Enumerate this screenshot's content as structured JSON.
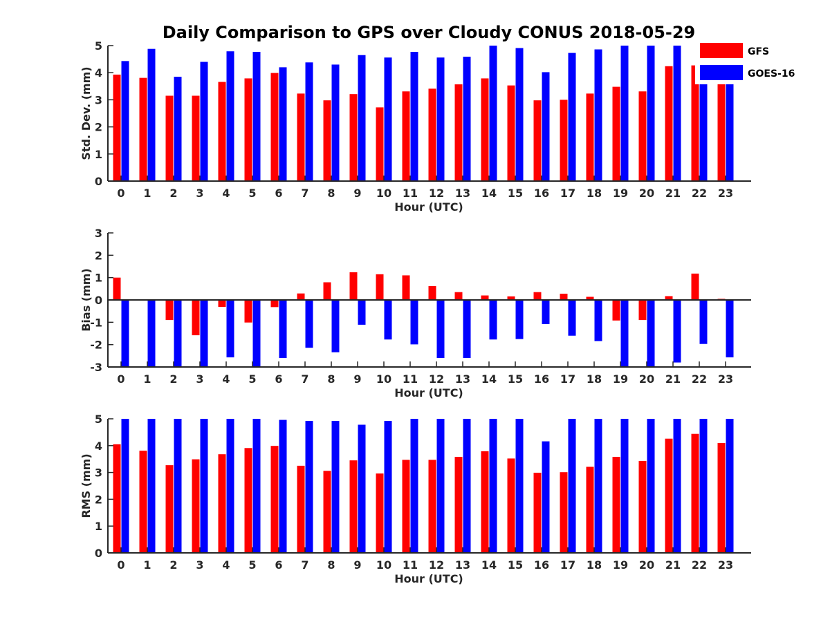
{
  "title": "Daily Comparison to GPS over Cloudy CONUS 2018-05-29",
  "legend": {
    "placement": "top-right",
    "entries": [
      {
        "name": "GFS",
        "color": "#ff0000"
      },
      {
        "name": "GOES-16",
        "color": "#0000ff"
      }
    ]
  },
  "chart_data": [
    {
      "type": "bar",
      "ylabel": "Std. Dev. (mm)",
      "xlabel": "Hour (UTC)",
      "ylim": [
        0,
        5
      ],
      "yticks": [
        0,
        1,
        2,
        3,
        4,
        5
      ],
      "categories": [
        "0",
        "1",
        "2",
        "3",
        "4",
        "5",
        "6",
        "7",
        "8",
        "9",
        "10",
        "11",
        "12",
        "13",
        "14",
        "15",
        "16",
        "17",
        "18",
        "19",
        "20",
        "21",
        "22",
        "23"
      ],
      "series": [
        {
          "name": "GFS",
          "color": "#ff0000",
          "values": [
            3.93,
            3.81,
            3.15,
            3.15,
            3.66,
            3.79,
            3.99,
            3.23,
            2.98,
            3.21,
            2.72,
            3.31,
            3.41,
            3.57,
            3.79,
            3.53,
            2.98,
            3.0,
            3.23,
            3.48,
            3.31,
            4.24,
            4.27,
            3.8
          ]
        },
        {
          "name": "GOES-16",
          "color": "#0000ff",
          "values": [
            4.43,
            4.88,
            3.85,
            4.4,
            4.79,
            4.77,
            4.2,
            4.38,
            4.3,
            4.65,
            4.56,
            4.77,
            4.56,
            4.59,
            5.0,
            4.91,
            4.02,
            4.73,
            4.86,
            5.0,
            5.0,
            5.0,
            5.0,
            4.6
          ]
        }
      ]
    },
    {
      "type": "bar",
      "ylabel": "Bias (mm)",
      "xlabel": "Hour (UTC)",
      "ylim": [
        -3,
        3
      ],
      "yticks": [
        -3,
        -2,
        -1,
        0,
        1,
        2,
        3
      ],
      "categories": [
        "0",
        "1",
        "2",
        "3",
        "4",
        "5",
        "6",
        "7",
        "8",
        "9",
        "10",
        "11",
        "12",
        "13",
        "14",
        "15",
        "16",
        "17",
        "18",
        "19",
        "20",
        "21",
        "22",
        "23"
      ],
      "series": [
        {
          "name": "GFS",
          "color": "#ff0000",
          "values": [
            1.0,
            0.0,
            -0.9,
            -1.58,
            -0.31,
            -1.01,
            -0.32,
            0.29,
            0.79,
            1.24,
            1.15,
            1.1,
            0.62,
            0.35,
            0.2,
            0.16,
            0.35,
            0.28,
            0.14,
            -0.92,
            -0.9,
            0.17,
            1.18,
            0.05
          ]
        },
        {
          "name": "GOES-16",
          "color": "#0000ff",
          "values": [
            -3.0,
            -3.0,
            -3.0,
            -3.0,
            -2.57,
            -3.0,
            -2.6,
            -2.14,
            -2.34,
            -1.11,
            -1.77,
            -1.99,
            -2.6,
            -2.6,
            -1.77,
            -1.75,
            -1.08,
            -1.6,
            -1.84,
            -3.0,
            -3.0,
            -2.8,
            -1.97,
            -2.57
          ]
        }
      ]
    },
    {
      "type": "bar",
      "ylabel": "RMS (mm)",
      "xlabel": "Hour (UTC)",
      "ylim": [
        0,
        5
      ],
      "yticks": [
        0,
        1,
        2,
        3,
        4,
        5
      ],
      "categories": [
        "0",
        "1",
        "2",
        "3",
        "4",
        "5",
        "6",
        "7",
        "8",
        "9",
        "10",
        "11",
        "12",
        "13",
        "14",
        "15",
        "16",
        "17",
        "18",
        "19",
        "20",
        "21",
        "22",
        "23"
      ],
      "series": [
        {
          "name": "GFS",
          "color": "#ff0000",
          "values": [
            4.05,
            3.81,
            3.27,
            3.49,
            3.68,
            3.91,
            3.99,
            3.25,
            3.06,
            3.45,
            2.96,
            3.47,
            3.47,
            3.58,
            3.79,
            3.52,
            2.99,
            3.01,
            3.21,
            3.58,
            3.43,
            4.26,
            4.44,
            4.1
          ]
        },
        {
          "name": "GOES-16",
          "color": "#0000ff",
          "values": [
            5.0,
            5.0,
            5.0,
            5.0,
            5.0,
            5.0,
            4.96,
            4.92,
            4.92,
            4.78,
            4.92,
            5.0,
            5.0,
            5.0,
            5.0,
            5.0,
            4.16,
            5.0,
            5.0,
            5.0,
            5.0,
            5.0,
            5.0,
            5.0
          ]
        }
      ]
    }
  ]
}
